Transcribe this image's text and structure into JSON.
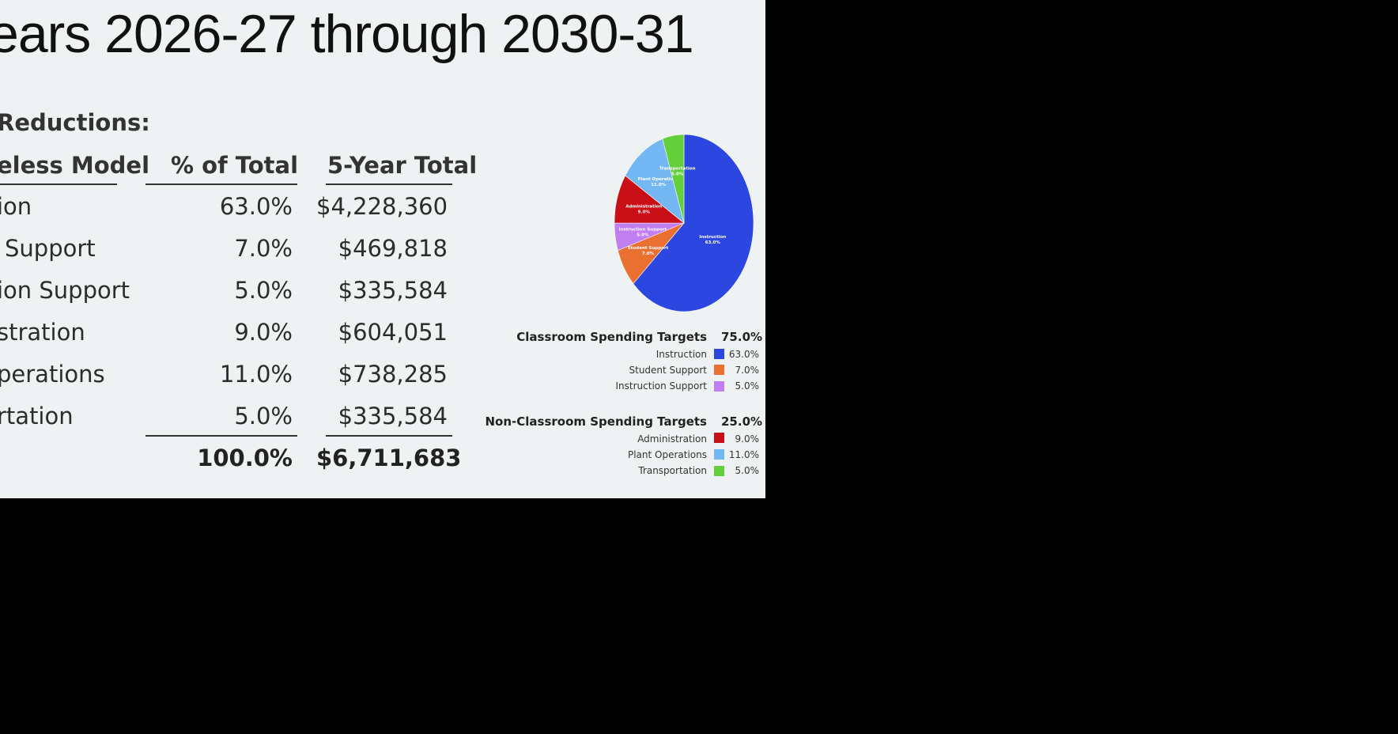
{
  "slide": {
    "title": "ears 2026-27 through 2030-31",
    "table": {
      "heading": "Reductions:",
      "col_model": "eless Model",
      "col_pct": "% of Total",
      "col_total": "5-Year Total",
      "rows": [
        {
          "label": "ion",
          "pct": "63.0%",
          "total": "$4,228,360"
        },
        {
          "label": "Support",
          "pct": "7.0%",
          "total": "$469,818"
        },
        {
          "label": "ion Support",
          "pct": "5.0%",
          "total": "$335,584"
        },
        {
          "label": "stration",
          "pct": "9.0%",
          "total": "$604,051"
        },
        {
          "label": "perations",
          "pct": "11.0%",
          "total": "$738,285"
        },
        {
          "label": "rtation",
          "pct": "5.0%",
          "total": "$335,584"
        }
      ],
      "total_pct": "100.0%",
      "total_amount": "$6,711,683"
    }
  },
  "chart_data": {
    "type": "pie",
    "slices": [
      {
        "label": "Instruction",
        "value": 63.0,
        "display": "63.0%",
        "color": "#2c46e0"
      },
      {
        "label": "Student Support",
        "value": 7.0,
        "display": "7.0%",
        "color": "#ea7031"
      },
      {
        "label": "Instruction Support",
        "value": 5.0,
        "display": "5.0%",
        "color": "#c07ef0"
      },
      {
        "label": "Administration",
        "value": 9.0,
        "display": "9.0%",
        "color": "#c80e17"
      },
      {
        "label": "Plant Operations",
        "value": 11.0,
        "display": "11.0%",
        "color": "#73b7f3"
      },
      {
        "label": "Transportation",
        "value": 5.0,
        "display": "5.0%",
        "color": "#63cf3d"
      }
    ],
    "legend": {
      "classroom": {
        "title": "Classroom Spending Targets",
        "pct": "75.0%",
        "items": [
          {
            "label": "Instruction",
            "value": "63.0%",
            "color": "#2c46e0"
          },
          {
            "label": "Student Support",
            "value": "7.0%",
            "color": "#ea7031"
          },
          {
            "label": "Instruction Support",
            "value": "5.0%",
            "color": "#c07ef0"
          }
        ]
      },
      "non_classroom": {
        "title": "Non-Classroom Spending Targets",
        "pct": "25.0%",
        "items": [
          {
            "label": "Administration",
            "value": "9.0%",
            "color": "#c80e17"
          },
          {
            "label": "Plant Operations",
            "value": "11.0%",
            "color": "#73b7f3"
          },
          {
            "label": "Transportation",
            "value": "5.0%",
            "color": "#63cf3d"
          }
        ]
      }
    }
  }
}
